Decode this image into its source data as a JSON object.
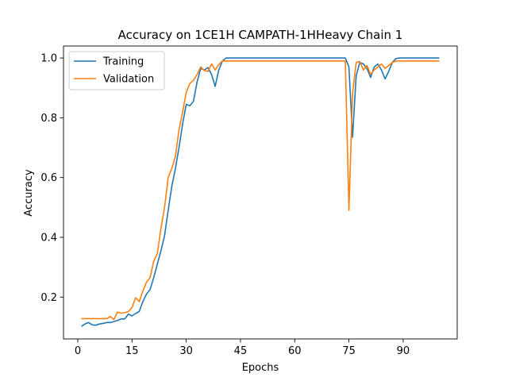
{
  "chart_data": {
    "type": "line",
    "title": "Accuracy on 1CE1H CAMPATH-1HHeavy Chain 1",
    "xlabel": "Epochs",
    "ylabel": "Accuracy",
    "xlim": [
      -3.95,
      104.95
    ],
    "ylim": [
      0.06,
      1.04
    ],
    "xticks": [
      0,
      15,
      30,
      45,
      60,
      75,
      90
    ],
    "yticks": [
      0.2,
      0.4,
      0.6,
      0.8,
      1.0
    ],
    "ytick_labels": [
      "0.2",
      "0.4",
      "0.6",
      "0.8",
      "1.0"
    ],
    "grid": false,
    "legend_position": "upper-left",
    "series": [
      {
        "name": "Training",
        "color": "#1f77b4",
        "x": [
          1,
          2,
          3,
          4,
          5,
          6,
          7,
          8,
          9,
          10,
          11,
          12,
          13,
          14,
          15,
          16,
          17,
          18,
          19,
          20,
          21,
          22,
          23,
          24,
          25,
          26,
          27,
          28,
          29,
          30,
          31,
          32,
          33,
          34,
          35,
          36,
          37,
          38,
          39,
          40,
          41,
          42,
          43,
          44,
          45,
          46,
          47,
          48,
          49,
          50,
          51,
          52,
          53,
          54,
          55,
          56,
          57,
          58,
          59,
          60,
          61,
          62,
          63,
          64,
          65,
          66,
          67,
          68,
          69,
          70,
          71,
          72,
          73,
          74,
          75,
          76,
          77,
          78,
          79,
          80,
          81,
          82,
          83,
          84,
          85,
          86,
          87,
          88,
          89,
          90,
          91,
          92,
          93,
          94,
          95,
          96,
          97,
          98,
          99,
          100
        ],
        "values": [
          0.102,
          0.11,
          0.115,
          0.107,
          0.106,
          0.11,
          0.112,
          0.115,
          0.115,
          0.118,
          0.122,
          0.127,
          0.127,
          0.143,
          0.137,
          0.145,
          0.152,
          0.185,
          0.21,
          0.225,
          0.265,
          0.31,
          0.355,
          0.405,
          0.49,
          0.57,
          0.63,
          0.7,
          0.78,
          0.845,
          0.84,
          0.855,
          0.92,
          0.965,
          0.96,
          0.968,
          0.945,
          0.905,
          0.96,
          0.99,
          1.0,
          1.0,
          1.0,
          1.0,
          1.0,
          1.0,
          1.0,
          1.0,
          1.0,
          1.0,
          1.0,
          1.0,
          1.0,
          1.0,
          1.0,
          1.0,
          1.0,
          1.0,
          1.0,
          1.0,
          1.0,
          1.0,
          1.0,
          1.0,
          1.0,
          1.0,
          1.0,
          1.0,
          1.0,
          1.0,
          1.0,
          1.0,
          1.0,
          1.0,
          0.97,
          0.735,
          0.94,
          0.985,
          0.98,
          0.965,
          0.935,
          0.97,
          0.98,
          0.96,
          0.93,
          0.955,
          0.985,
          0.998,
          1.0,
          1.0,
          1.0,
          1.0,
          1.0,
          1.0,
          1.0,
          1.0,
          1.0,
          1.0,
          1.0,
          1.0
        ]
      },
      {
        "name": "Validation",
        "color": "#ff7f0e",
        "x": [
          1,
          2,
          3,
          4,
          5,
          6,
          7,
          8,
          9,
          10,
          11,
          12,
          13,
          14,
          15,
          16,
          17,
          18,
          19,
          20,
          21,
          22,
          23,
          24,
          25,
          26,
          27,
          28,
          29,
          30,
          31,
          32,
          33,
          34,
          35,
          36,
          37,
          38,
          39,
          40,
          41,
          42,
          43,
          44,
          45,
          46,
          47,
          48,
          49,
          50,
          51,
          52,
          53,
          54,
          55,
          56,
          57,
          58,
          59,
          60,
          61,
          62,
          63,
          64,
          65,
          66,
          67,
          68,
          69,
          70,
          71,
          72,
          73,
          74,
          75,
          76,
          77,
          78,
          79,
          80,
          81,
          82,
          83,
          84,
          85,
          86,
          87,
          88,
          89,
          90,
          91,
          92,
          93,
          94,
          95,
          96,
          97,
          98,
          99,
          100
        ],
        "values": [
          0.128,
          0.128,
          0.128,
          0.128,
          0.128,
          0.128,
          0.128,
          0.128,
          0.135,
          0.125,
          0.15,
          0.146,
          0.148,
          0.152,
          0.165,
          0.198,
          0.185,
          0.22,
          0.25,
          0.265,
          0.32,
          0.345,
          0.43,
          0.5,
          0.6,
          0.63,
          0.67,
          0.76,
          0.82,
          0.885,
          0.915,
          0.925,
          0.945,
          0.97,
          0.958,
          0.955,
          0.98,
          0.96,
          0.978,
          0.99,
          0.99,
          0.99,
          0.99,
          0.99,
          0.99,
          0.99,
          0.99,
          0.99,
          0.99,
          0.99,
          0.99,
          0.99,
          0.99,
          0.99,
          0.99,
          0.99,
          0.99,
          0.99,
          0.99,
          0.99,
          0.99,
          0.99,
          0.99,
          0.99,
          0.99,
          0.99,
          0.99,
          0.99,
          0.99,
          0.99,
          0.99,
          0.99,
          0.99,
          0.99,
          0.49,
          0.88,
          0.985,
          0.988,
          0.96,
          0.975,
          0.945,
          0.96,
          0.97,
          0.98,
          0.965,
          0.975,
          0.985,
          0.99,
          0.99,
          0.99,
          0.99,
          0.99,
          0.99,
          0.99,
          0.99,
          0.99,
          0.99,
          0.99,
          0.99,
          0.99
        ]
      }
    ]
  }
}
